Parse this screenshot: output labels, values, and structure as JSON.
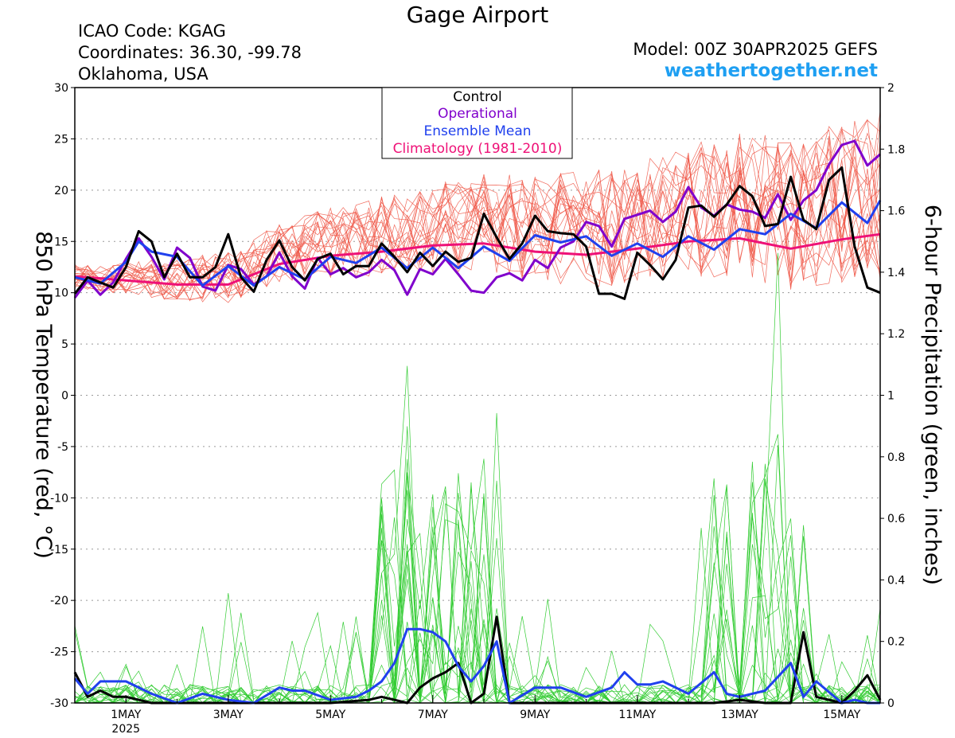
{
  "header": {
    "title": "Gage Airport",
    "icao": "ICAO Code: KGAG",
    "coords": "Coordinates: 36.30, -99.78",
    "region": "Oklahoma, USA",
    "model": "Model: 00Z 30APR2025 GEFS",
    "site": "weathertogether.net"
  },
  "colors": {
    "control": "#000000",
    "operational": "#8000cc",
    "ensemble_mean": "#2040ee",
    "climatology": "#ee1177",
    "members_temp": "#f05a4a",
    "members_precip": "#33cc33",
    "site": "#1e9ff2"
  },
  "chart_data": {
    "type": "line",
    "ylabel_left": "850 hPa Temperature (red, °C)",
    "ylabel_right": "6-hour Precipitation (green, inches)",
    "xlim": [
      0,
      15.75
    ],
    "ylim_left": [
      -30,
      30
    ],
    "ylim_right": [
      0,
      2
    ],
    "x_unit": "days since 30APR2025 00Z",
    "yticks_left": [
      "-30",
      "-25",
      "-20",
      "-15",
      "-10",
      "-5",
      "0",
      "5",
      "10",
      "15",
      "20",
      "25",
      "30"
    ],
    "yticks_right": [
      "0",
      "0.2",
      "0.4",
      "0.6",
      "0.8",
      "1",
      "1.2",
      "1.4",
      "1.6",
      "1.8",
      "2"
    ],
    "xticks": [
      {
        "x": 1,
        "label": "1MAY",
        "sub": "2025"
      },
      {
        "x": 3,
        "label": "3MAY",
        "sub": ""
      },
      {
        "x": 5,
        "label": "5MAY",
        "sub": ""
      },
      {
        "x": 7,
        "label": "7MAY",
        "sub": ""
      },
      {
        "x": 9,
        "label": "9MAY",
        "sub": ""
      },
      {
        "x": 11,
        "label": "11MAY",
        "sub": ""
      },
      {
        "x": 13,
        "label": "13MAY",
        "sub": ""
      },
      {
        "x": 15,
        "label": "15MAY",
        "sub": ""
      }
    ],
    "grid": "dotted horizontal",
    "legend": {
      "position": "top-center",
      "entries": [
        {
          "label": "Control",
          "color": "#000000"
        },
        {
          "label": "Operational",
          "color": "#8000cc"
        },
        {
          "label": "Ensemble Mean",
          "color": "#2040ee"
        },
        {
          "label": "Climatology (1981-2010)",
          "color": "#ee1177"
        }
      ]
    },
    "series": [
      {
        "name": "Control",
        "axis": "left",
        "x": [
          0,
          0.25,
          0.5,
          0.75,
          1,
          1.25,
          1.5,
          1.75,
          2,
          2.25,
          2.5,
          2.75,
          3,
          3.25,
          3.5,
          3.75,
          4,
          4.25,
          4.5,
          4.75,
          5,
          5.25,
          5.5,
          5.75,
          6,
          6.25,
          6.5,
          6.75,
          7,
          7.25,
          7.5,
          7.75,
          8,
          8.25,
          8.5,
          8.75,
          9,
          9.25,
          9.5,
          9.75,
          10,
          10.25,
          10.5,
          10.75,
          11,
          11.25,
          11.5,
          11.75,
          12,
          12.25,
          12.5,
          12.75,
          13,
          13.25,
          13.5,
          13.75,
          14,
          14.25,
          14.5,
          14.75,
          15,
          15.25,
          15.5,
          15.75
        ],
        "y": [
          9.9,
          11.5,
          11,
          10.5,
          12.5,
          16,
          15,
          11.5,
          13.8,
          11.5,
          11.5,
          12.5,
          15.7,
          11.5,
          10.1,
          13.2,
          15.1,
          12.5,
          11.2,
          13.3,
          13.8,
          11.8,
          12.6,
          12.6,
          14.8,
          13.5,
          12,
          13.9,
          12.6,
          14,
          13,
          13.4,
          17.7,
          15.4,
          13.3,
          14.8,
          17.5,
          16,
          15.8,
          15.7,
          14.5,
          9.9,
          9.9,
          9.4,
          13.9,
          12.7,
          11.3,
          13.2,
          18.3,
          18.5,
          17.4,
          18.6,
          20.4,
          19.4,
          16.5,
          16.7,
          21.3,
          17.1,
          16.2,
          21,
          22.2,
          14.5,
          10.5,
          10
        ]
      },
      {
        "name": "Operational",
        "axis": "left",
        "x": [
          0,
          0.25,
          0.5,
          0.75,
          1,
          1.25,
          1.5,
          1.75,
          2,
          2.25,
          2.5,
          2.75,
          3,
          3.25,
          3.5,
          3.75,
          4,
          4.25,
          4.5,
          4.75,
          5,
          5.25,
          5.5,
          5.75,
          6,
          6.25,
          6.5,
          6.75,
          7,
          7.25,
          7.5,
          7.75,
          8,
          8.25,
          8.5,
          8.75,
          9,
          9.25,
          9.5,
          9.75,
          10,
          10.25,
          10.5,
          10.75,
          11,
          11.25,
          11.5,
          11.75,
          12,
          12.25,
          12.5,
          12.75,
          13,
          13.25,
          13.5,
          13.75,
          14,
          14.25,
          14.5,
          14.75,
          15,
          15.25,
          15.5,
          15.75
        ],
        "y": [
          9.5,
          11.2,
          9.8,
          11,
          13.3,
          15.3,
          13.5,
          11.3,
          14.4,
          13.4,
          10.6,
          10.2,
          12.7,
          12.3,
          10.8,
          11.6,
          13.9,
          11.6,
          10.4,
          13.4,
          11.8,
          12.4,
          11.5,
          12,
          13.2,
          12.2,
          9.8,
          12.3,
          11.8,
          13.3,
          11.8,
          10.2,
          10,
          11.5,
          11.9,
          11.2,
          13.2,
          12.4,
          14.4,
          15,
          16.9,
          16.5,
          14.5,
          17.2,
          17.6,
          18,
          16.9,
          17.9,
          20.3,
          18.3,
          17.5,
          18.6,
          18.1,
          17.9,
          17.3,
          19.6,
          17.1,
          19,
          20,
          22.5,
          24.4,
          24.8,
          22.4,
          23.5
        ]
      },
      {
        "name": "Ensemble Mean",
        "axis": "left",
        "x": [
          0,
          0.5,
          1,
          1.25,
          1.5,
          2,
          2.5,
          3,
          3.5,
          4,
          4.5,
          5,
          5.5,
          6,
          6.5,
          7,
          7.5,
          8,
          8.5,
          9,
          9.5,
          10,
          10.5,
          11,
          11.5,
          12,
          12.5,
          13,
          13.5,
          14,
          14.5,
          15,
          15.5,
          15.75
        ],
        "y": [
          11.5,
          10.9,
          13,
          15,
          14,
          13.5,
          10.7,
          12.6,
          10.7,
          12.5,
          11.3,
          13.5,
          12.9,
          14.4,
          12.4,
          14.4,
          12.4,
          14.5,
          13.1,
          15.6,
          14.9,
          15.5,
          13.6,
          14.8,
          13.5,
          15.5,
          14.2,
          16.2,
          15.7,
          17.7,
          16.3,
          18.8,
          16.8,
          19
        ]
      },
      {
        "name": "Climatology (1981-2010)",
        "axis": "left",
        "x": [
          0,
          1,
          2,
          3,
          4,
          5,
          6,
          7,
          8,
          9,
          10,
          11,
          12,
          13,
          14,
          15,
          15.75
        ],
        "y": [
          11.6,
          11.2,
          10.8,
          10.8,
          12.8,
          13.6,
          14,
          14.6,
          14.8,
          14,
          13.7,
          14.3,
          15,
          15.3,
          14.3,
          15.2,
          15.7
        ]
      },
      {
        "name": "Control",
        "axis": "right",
        "x": [
          0,
          0.25,
          0.5,
          0.75,
          1,
          1.25,
          1.5,
          2,
          3,
          4,
          5,
          5.75,
          6,
          6.25,
          6.5,
          6.75,
          7,
          7.25,
          7.5,
          7.75,
          8,
          8.25,
          8.5,
          9,
          12.5,
          13,
          13.5,
          14,
          14.25,
          14.5,
          15,
          15.25,
          15.5,
          15.75
        ],
        "y": [
          0.1,
          0.02,
          0.04,
          0.02,
          0.02,
          0.01,
          0,
          0,
          0,
          0,
          0,
          0.01,
          0.02,
          0.01,
          0,
          0.05,
          0.08,
          0.1,
          0.13,
          0,
          0.03,
          0.28,
          0,
          0,
          0,
          0.01,
          0,
          0,
          0.23,
          0.02,
          0,
          0.04,
          0.09,
          0.01
        ]
      },
      {
        "name": "Ensemble Mean",
        "axis": "right",
        "x": [
          0,
          0.25,
          0.5,
          1,
          1.5,
          2,
          2.5,
          3,
          3.5,
          4,
          4.25,
          4.5,
          5,
          5.5,
          5.75,
          6,
          6.25,
          6.5,
          6.75,
          7,
          7.25,
          7.5,
          7.75,
          8,
          8.25,
          8.5,
          9,
          9.5,
          10,
          10.5,
          10.75,
          11,
          11.25,
          11.5,
          12,
          12.5,
          12.75,
          13,
          13.5,
          14,
          14.25,
          14.5,
          15,
          15.25,
          15.5,
          15.75
        ],
        "y": [
          0.08,
          0.03,
          0.07,
          0.07,
          0.03,
          0,
          0.03,
          0.01,
          0,
          0.05,
          0.04,
          0.04,
          0.01,
          0.02,
          0.04,
          0.07,
          0.13,
          0.24,
          0.24,
          0.23,
          0.2,
          0.12,
          0.07,
          0.12,
          0.2,
          0,
          0.05,
          0.05,
          0.02,
          0.05,
          0.1,
          0.06,
          0.06,
          0.07,
          0.03,
          0.1,
          0.03,
          0.02,
          0.04,
          0.13,
          0.02,
          0.07,
          0,
          0.01,
          0,
          0
        ]
      }
    ]
  }
}
